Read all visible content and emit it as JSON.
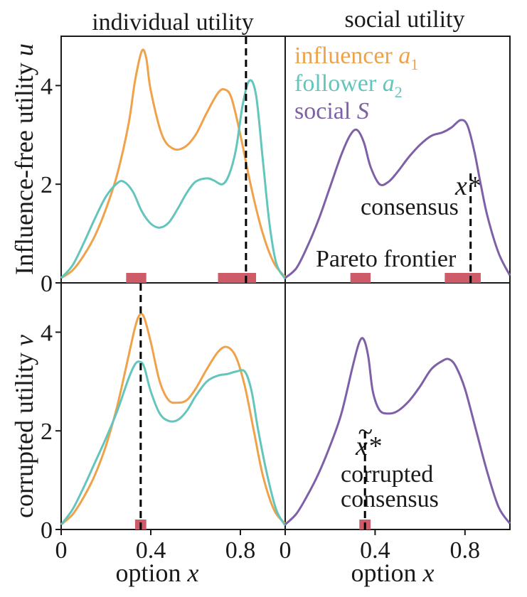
{
  "colors": {
    "influencer": "#EFA24A",
    "follower": "#63C5BC",
    "social": "#7D60A6",
    "pareto": "#CD5C68",
    "marker": "#000000"
  },
  "chart_data": [
    {
      "type": "line",
      "panel": "top-left",
      "title": "individual utility",
      "ylabel_text": "Influence-free utility ",
      "ylabel_var": "u",
      "xlim": [
        0,
        1
      ],
      "ylim": [
        0,
        5
      ],
      "yticks": [
        "0",
        "2",
        "4"
      ],
      "ytick_values": [
        0,
        2,
        4
      ],
      "series": [
        {
          "key": "influencer",
          "x": [
            0,
            0.05,
            0.1,
            0.15,
            0.2,
            0.25,
            0.3,
            0.33,
            0.36,
            0.38,
            0.4,
            0.45,
            0.5,
            0.55,
            0.6,
            0.65,
            0.7,
            0.73,
            0.76,
            0.8,
            0.85,
            0.9,
            0.95,
            1.0
          ],
          "y": [
            0.1,
            0.25,
            0.55,
            0.95,
            1.5,
            2.2,
            3.2,
            4.1,
            4.7,
            4.55,
            3.9,
            3.0,
            2.72,
            2.75,
            3.0,
            3.45,
            3.85,
            3.92,
            3.75,
            3.0,
            1.9,
            1.0,
            0.4,
            0.12
          ]
        },
        {
          "key": "follower",
          "x": [
            0,
            0.05,
            0.1,
            0.15,
            0.2,
            0.25,
            0.28,
            0.32,
            0.36,
            0.4,
            0.44,
            0.48,
            0.52,
            0.56,
            0.6,
            0.65,
            0.68,
            0.72,
            0.75,
            0.78,
            0.81,
            0.84,
            0.87,
            0.9,
            0.93,
            0.96,
            1.0
          ],
          "y": [
            0.1,
            0.35,
            0.8,
            1.3,
            1.75,
            2.02,
            2.05,
            1.85,
            1.45,
            1.2,
            1.12,
            1.22,
            1.5,
            1.82,
            2.05,
            2.12,
            2.08,
            2.0,
            2.2,
            2.7,
            3.6,
            4.1,
            3.8,
            2.5,
            1.2,
            0.4,
            0.08
          ]
        }
      ],
      "vline_x": 0.825,
      "pareto_intervals": [
        [
          0.29,
          0.38
        ],
        [
          0.7,
          0.87
        ]
      ]
    },
    {
      "type": "line",
      "panel": "top-right",
      "title": "social utility",
      "xlim": [
        0,
        1
      ],
      "ylim": [
        0,
        5
      ],
      "legend": [
        {
          "key": "influencer",
          "label": "influencer ",
          "var": "a",
          "sub": "1"
        },
        {
          "key": "follower",
          "label": "follower ",
          "var": "a",
          "sub": "2"
        },
        {
          "key": "social",
          "label": "social ",
          "var": "S",
          "sub": ""
        }
      ],
      "series": [
        {
          "key": "social",
          "x": [
            0,
            0.05,
            0.1,
            0.15,
            0.2,
            0.25,
            0.29,
            0.32,
            0.35,
            0.38,
            0.42,
            0.46,
            0.5,
            0.55,
            0.6,
            0.65,
            0.7,
            0.74,
            0.78,
            0.81,
            0.84,
            0.87,
            0.9,
            0.95,
            1.0
          ],
          "y": [
            0.1,
            0.3,
            0.75,
            1.3,
            1.95,
            2.6,
            3.0,
            3.1,
            2.85,
            2.35,
            2.0,
            2.05,
            2.25,
            2.55,
            2.8,
            2.98,
            3.05,
            3.15,
            3.3,
            3.2,
            2.7,
            2.0,
            1.35,
            0.6,
            0.15
          ]
        }
      ],
      "vline_x": 0.825,
      "vline_ymax": 2.25,
      "xstar_label": "x*",
      "consensus_label": "consensus",
      "pareto_label": "Pareto frontier",
      "pareto_intervals": [
        [
          0.29,
          0.38
        ],
        [
          0.71,
          0.87
        ]
      ]
    },
    {
      "type": "line",
      "panel": "bottom-left",
      "ylabel_text": "corrupted utility ",
      "ylabel_var": "v",
      "xlabel_text": "option ",
      "xlabel_var": "x",
      "xlim": [
        0,
        1
      ],
      "ylim": [
        0,
        5
      ],
      "xticks": [
        "0",
        "0.4",
        "0.8"
      ],
      "xtick_values": [
        0,
        0.4,
        0.8
      ],
      "yticks": [
        "0",
        "2",
        "4"
      ],
      "ytick_values": [
        0,
        2,
        4
      ],
      "series": [
        {
          "key": "influencer",
          "x": [
            0,
            0.05,
            0.1,
            0.15,
            0.2,
            0.25,
            0.3,
            0.33,
            0.35,
            0.37,
            0.4,
            0.44,
            0.48,
            0.52,
            0.56,
            0.6,
            0.65,
            0.7,
            0.74,
            0.78,
            0.82,
            0.86,
            0.9,
            0.95,
            1.0
          ],
          "y": [
            0.1,
            0.3,
            0.65,
            1.1,
            1.7,
            2.5,
            3.5,
            4.1,
            4.35,
            4.3,
            3.8,
            3.0,
            2.62,
            2.57,
            2.62,
            2.85,
            3.25,
            3.6,
            3.7,
            3.5,
            2.9,
            2.0,
            1.1,
            0.4,
            0.12
          ]
        },
        {
          "key": "follower",
          "x": [
            0,
            0.05,
            0.1,
            0.15,
            0.2,
            0.25,
            0.3,
            0.33,
            0.35,
            0.37,
            0.4,
            0.44,
            0.48,
            0.52,
            0.56,
            0.6,
            0.65,
            0.7,
            0.74,
            0.78,
            0.82,
            0.85,
            0.88,
            0.92,
            0.96,
            1.0
          ],
          "y": [
            0.1,
            0.4,
            0.85,
            1.35,
            1.85,
            2.4,
            3.05,
            3.35,
            3.4,
            3.3,
            2.8,
            2.35,
            2.2,
            2.22,
            2.4,
            2.7,
            3.0,
            3.12,
            3.15,
            3.2,
            3.2,
            2.8,
            2.0,
            1.1,
            0.4,
            0.08
          ]
        }
      ],
      "vline_x": 0.355,
      "pareto_intervals": [
        [
          0.33,
          0.38
        ]
      ]
    },
    {
      "type": "line",
      "panel": "bottom-right",
      "xlabel_text": "option ",
      "xlabel_var": "x",
      "xlim": [
        0,
        1
      ],
      "ylim": [
        0,
        5
      ],
      "xticks": [
        "0",
        "0.4",
        "0.8"
      ],
      "xtick_values": [
        0,
        0.4,
        0.8
      ],
      "series": [
        {
          "key": "social",
          "x": [
            0,
            0.05,
            0.1,
            0.15,
            0.2,
            0.25,
            0.3,
            0.33,
            0.35,
            0.37,
            0.39,
            0.42,
            0.46,
            0.5,
            0.55,
            0.6,
            0.65,
            0.7,
            0.73,
            0.76,
            0.8,
            0.85,
            0.9,
            0.95,
            1.0
          ],
          "y": [
            0.1,
            0.32,
            0.7,
            1.15,
            1.7,
            2.35,
            3.3,
            3.8,
            3.85,
            3.5,
            2.8,
            2.42,
            2.35,
            2.4,
            2.6,
            2.9,
            3.25,
            3.42,
            3.45,
            3.3,
            2.85,
            2.0,
            1.15,
            0.45,
            0.12
          ]
        }
      ],
      "vline_x": 0.355,
      "vline_ymax": 1.98,
      "xstar_label": "x*",
      "corrupted_label_1": "corrupted",
      "corrupted_label_2": "consensus",
      "pareto_intervals": [
        [
          0.33,
          0.38
        ]
      ]
    }
  ]
}
